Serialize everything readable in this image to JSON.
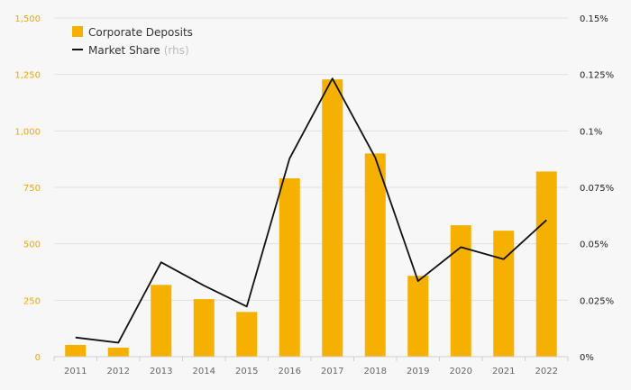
{
  "chart_data": {
    "type": "bar",
    "title": "",
    "categories": [
      "2011",
      "2012",
      "2013",
      "2014",
      "2015",
      "2016",
      "2017",
      "2018",
      "2019",
      "2020",
      "2021",
      "2022"
    ],
    "series": [
      {
        "name": "Corporate Deposits",
        "type": "bar",
        "axis": "left",
        "color": "#f5b000",
        "values": [
          52,
          40,
          318,
          255,
          198,
          790,
          1228,
          900,
          358,
          582,
          558,
          820
        ]
      },
      {
        "name": "Market Share",
        "name_suffix": "(rhs)",
        "type": "line",
        "axis": "right",
        "color": "#111111",
        "values": [
          0.0085,
          0.0062,
          0.0418,
          0.0315,
          0.0222,
          0.0878,
          0.1232,
          0.0882,
          0.0335,
          0.0485,
          0.0432,
          0.0605
        ]
      }
    ],
    "y_left": {
      "ylim": [
        0,
        1500
      ],
      "ticks": [
        0,
        250,
        500,
        750,
        1000,
        1250,
        1500
      ],
      "tick_labels": [
        "0",
        "250",
        "500",
        "750",
        "1,000",
        "1,250",
        "1,500"
      ],
      "color": "#f5a800"
    },
    "y_right": {
      "ylim": [
        0,
        0.15
      ],
      "ticks": [
        0,
        0.025,
        0.05,
        0.075,
        0.1,
        0.125,
        0.15
      ],
      "tick_labels": [
        "0%",
        "0.025%",
        "0.05%",
        "0.075%",
        "0.1%",
        "0.125%",
        "0.15%"
      ]
    },
    "grid": true,
    "legend": "top-left"
  }
}
